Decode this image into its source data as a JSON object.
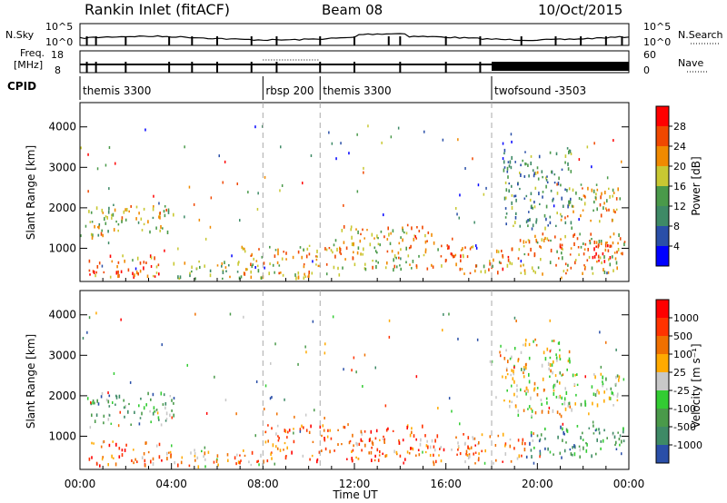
{
  "header": {
    "station": "Rankin Inlet (fitACF)",
    "beam": "Beam 08",
    "date": "10/Oct/2015"
  },
  "top_panels": {
    "nsky_label": "N.Sky",
    "nsearch_label": "N.Search",
    "nsky_ticks": [
      "10^5",
      "10^0"
    ],
    "nsearch_ticks": [
      "10^5",
      "10^0"
    ],
    "freq_label_1": "Freq.",
    "freq_label_2": "[MHz]",
    "freq_ticks": [
      "18",
      "8"
    ],
    "nave_label": "Nave",
    "nave_ticks": [
      "60",
      "0"
    ],
    "cpid_label": "CPID",
    "cpid_segments": [
      {
        "label": "themis 3300",
        "start": 0.0,
        "end": 8.0
      },
      {
        "label": "rbsp 200",
        "start": 8.0,
        "end": 10.5
      },
      {
        "label": "themis 3300",
        "start": 10.5,
        "end": 18.0
      },
      {
        "label": "twofsound -3503",
        "start": 18.0,
        "end": 24.0
      }
    ]
  },
  "chart_data": [
    {
      "type": "heatmap",
      "name": "power",
      "ylabel": "Slant Range [km]",
      "yticks": [
        "4000",
        "3000",
        "2000",
        "1000"
      ],
      "ylim": [
        180,
        4600
      ],
      "xlim": [
        0,
        24
      ],
      "colorbar_label": "Power [dB]",
      "colorbar_ticks": [
        "28",
        "24",
        "20",
        "16",
        "12",
        "8",
        "4"
      ],
      "colors": [
        "#0000ff",
        "#2a4fa8",
        "#3e8a66",
        "#4a9a4a",
        "#c8c832",
        "#f08a00",
        "#f04800",
        "#ff0000"
      ],
      "blobs": [
        {
          "t": 0.3,
          "t2": 3.5,
          "r": 320,
          "r2": 850,
          "v": 0.75
        },
        {
          "t": 0.3,
          "t2": 4.2,
          "r": 1300,
          "r2": 2100,
          "v": 0.55
        },
        {
          "t": 1.5,
          "t2": 3.0,
          "r": 280,
          "r2": 500,
          "v": 0.95
        },
        {
          "t": 4.0,
          "t2": 7.5,
          "r": 250,
          "r2": 700,
          "v": 0.5
        },
        {
          "t": 7.0,
          "t2": 11.5,
          "r": 300,
          "r2": 1100,
          "v": 0.65
        },
        {
          "t": 11.0,
          "t2": 15.5,
          "r": 500,
          "r2": 1600,
          "v": 0.6
        },
        {
          "t": 15.5,
          "t2": 19.0,
          "r": 400,
          "r2": 1100,
          "v": 0.7
        },
        {
          "t": 19.0,
          "t2": 23.8,
          "r": 400,
          "r2": 1400,
          "v": 0.65
        },
        {
          "t": 22.0,
          "t2": 23.8,
          "r": 700,
          "r2": 1400,
          "v": 0.85
        },
        {
          "t": 21.0,
          "t2": 23.6,
          "r": 1700,
          "r2": 2600,
          "v": 0.6
        },
        {
          "t": 18.5,
          "t2": 21.5,
          "r": 1500,
          "r2": 3500,
          "v": 0.35
        }
      ]
    },
    {
      "type": "heatmap",
      "name": "velocity",
      "ylabel": "Slant Range [km]",
      "xlabel": "Time UT",
      "xticks": [
        "00:00",
        "04:00",
        "08:00",
        "12:00",
        "16:00",
        "20:00",
        "00:00"
      ],
      "yticks": [
        "4000",
        "3000",
        "2000",
        "1000"
      ],
      "ylim": [
        180,
        4600
      ],
      "xlim": [
        0,
        24
      ],
      "colorbar_label": "Velocity [m s⁻¹]",
      "colorbar_ticks": [
        "1000",
        "500",
        "100",
        "25",
        "-25",
        "-100",
        "-500",
        "-1000"
      ],
      "colors": [
        "#2a4fa8",
        "#3e8a66",
        "#4a9a4a",
        "#33cc33",
        "#c8c8c8",
        "#ffaa00",
        "#f07000",
        "#ff3300",
        "#ff0000"
      ],
      "blobs": [
        {
          "t": 0.3,
          "t2": 4.0,
          "r": 300,
          "r2": 900,
          "v": 0.72
        },
        {
          "t": 0.3,
          "t2": 4.2,
          "r": 1300,
          "r2": 2100,
          "v": 0.3
        },
        {
          "t": 4.0,
          "t2": 8.0,
          "r": 280,
          "r2": 700,
          "v": 0.62
        },
        {
          "t": 8.0,
          "t2": 15.0,
          "r": 400,
          "r2": 1300,
          "v": 0.75
        },
        {
          "t": 15.0,
          "t2": 19.5,
          "r": 350,
          "r2": 1100,
          "v": 0.7
        },
        {
          "t": 19.5,
          "t2": 23.8,
          "r": 500,
          "r2": 1300,
          "v": 0.25
        },
        {
          "t": 21.0,
          "t2": 23.6,
          "r": 1700,
          "r2": 2600,
          "v": 0.45
        },
        {
          "t": 18.5,
          "t2": 21.5,
          "r": 1500,
          "r2": 3500,
          "v": 0.55
        }
      ]
    }
  ]
}
